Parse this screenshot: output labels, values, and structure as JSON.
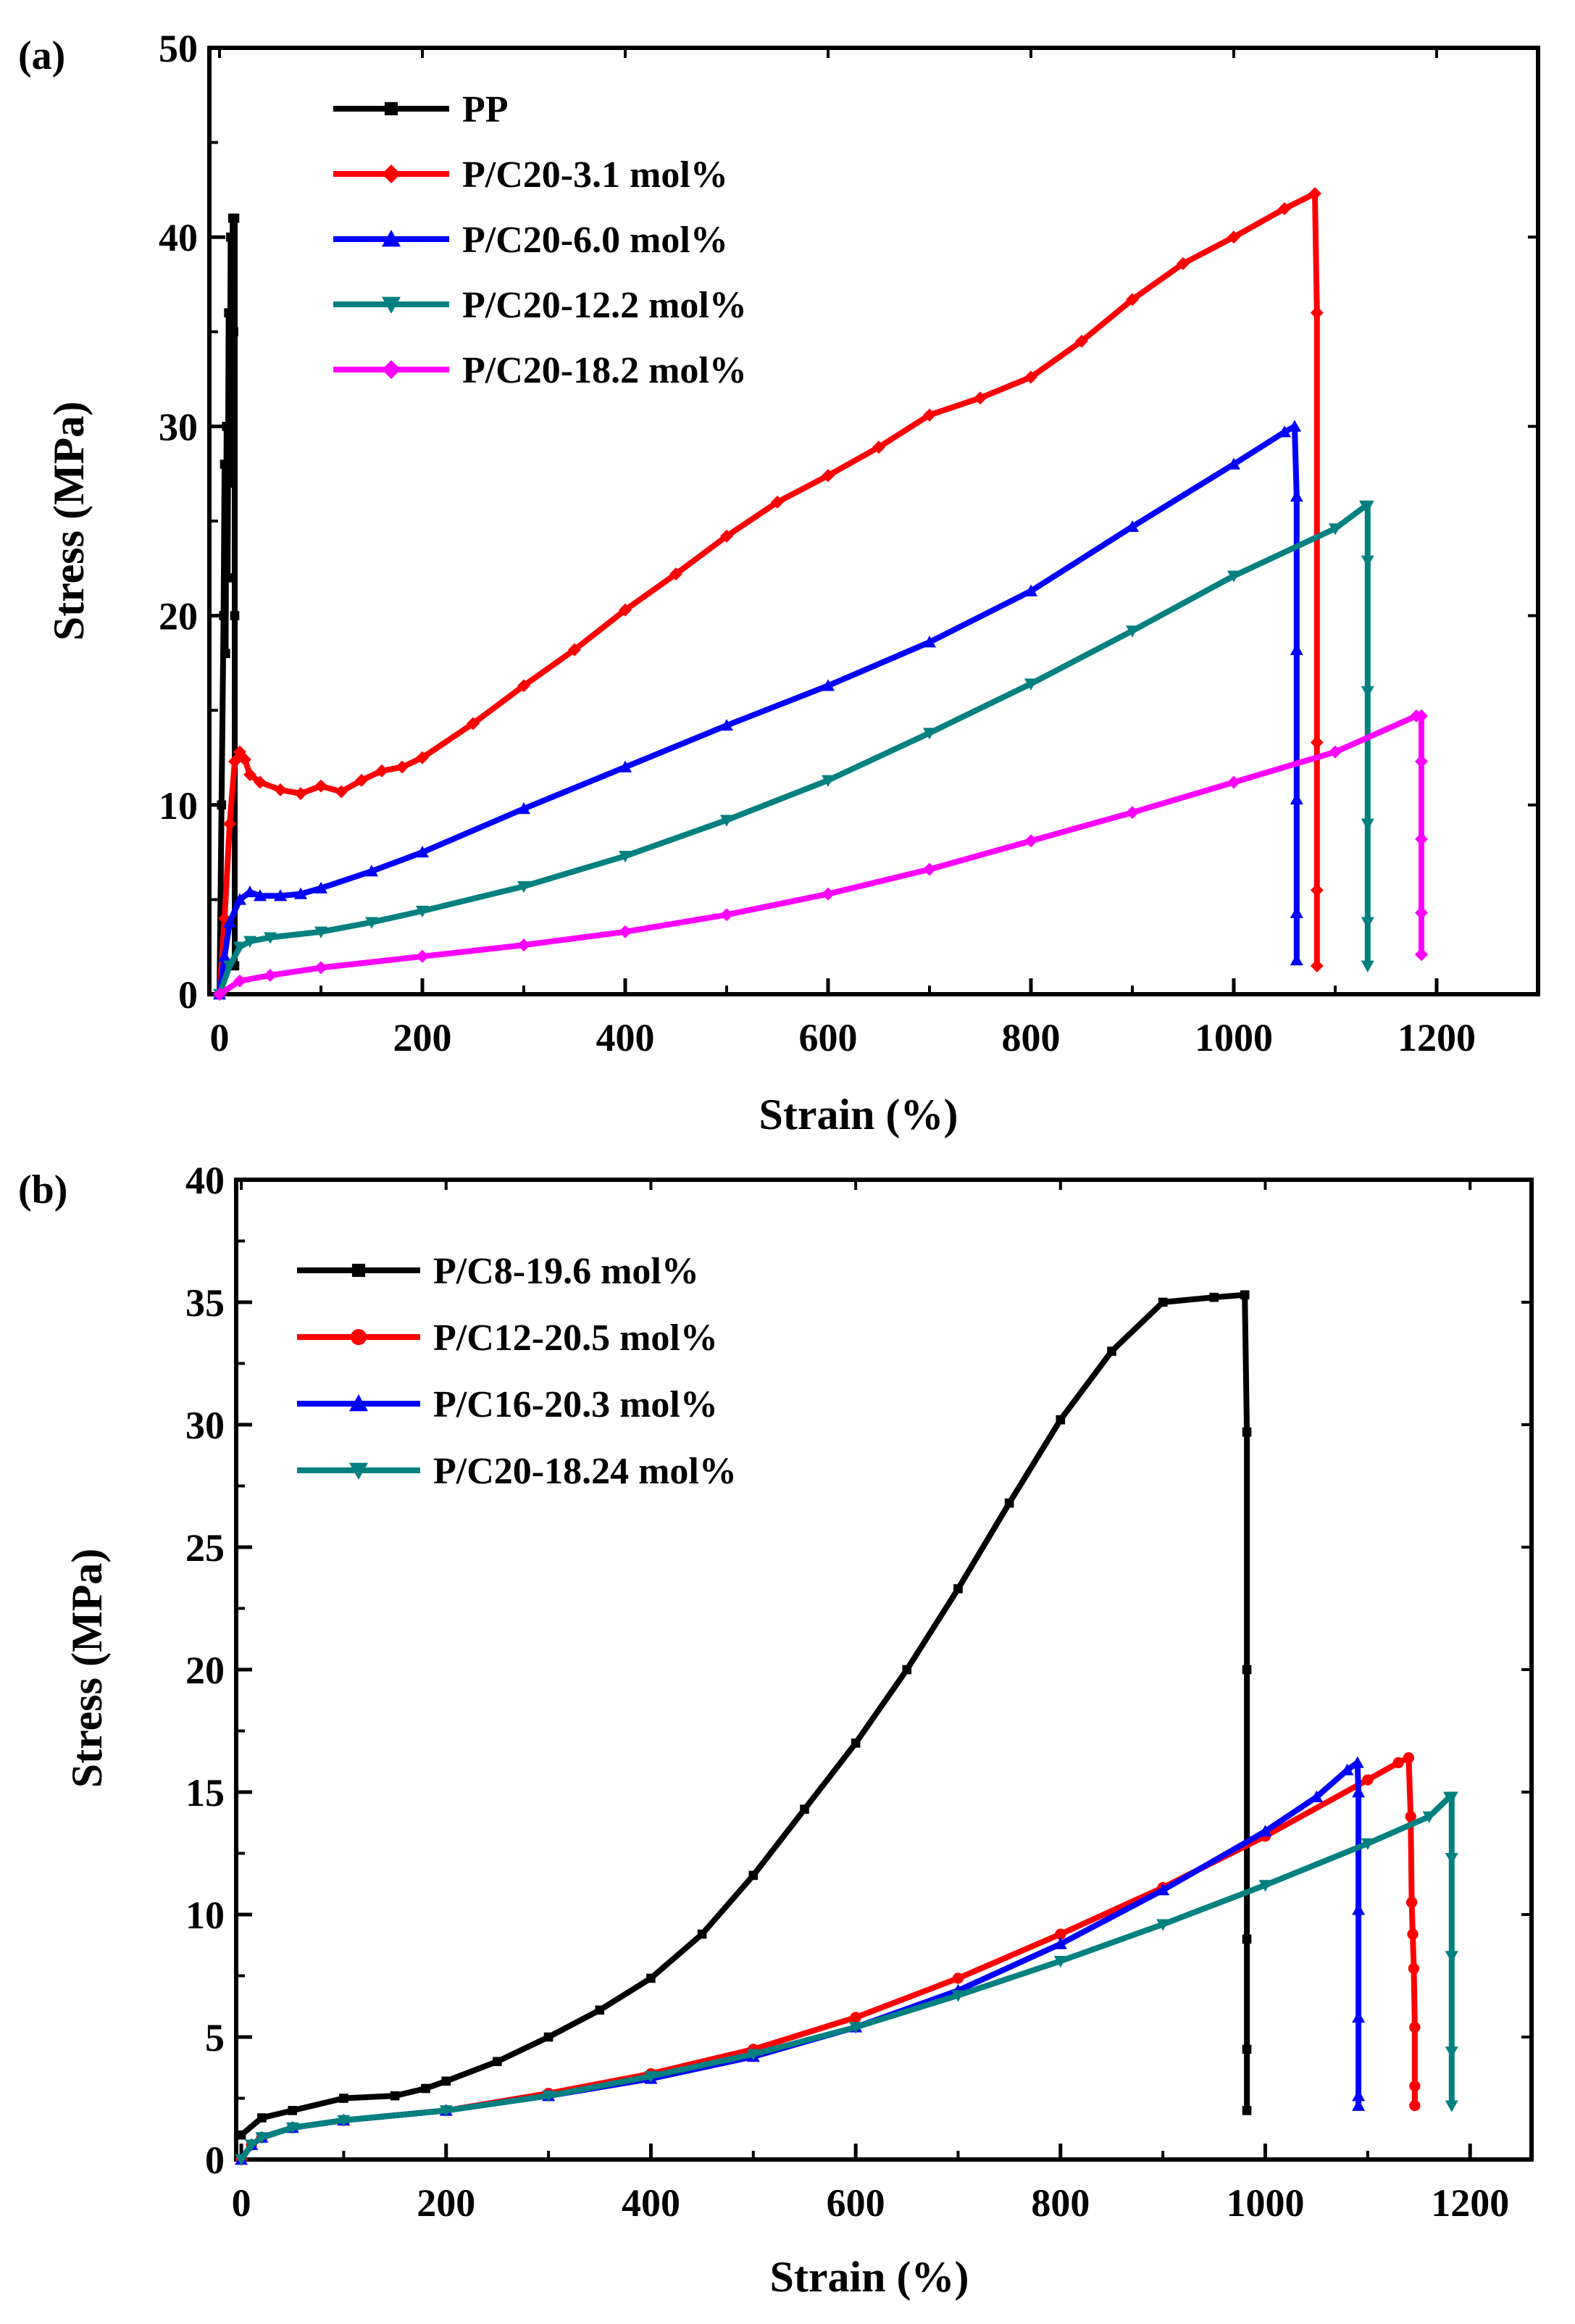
{
  "chart_data": [
    {
      "type": "line",
      "panel_label": "(a)",
      "xlabel": "Strain (%)",
      "ylabel": "Stress (MPa)",
      "xlim": [
        -10,
        1300
      ],
      "ylim": [
        0,
        50
      ],
      "xticks": [
        0,
        200,
        400,
        600,
        800,
        1000,
        1200
      ],
      "yticks": [
        0,
        10,
        20,
        30,
        40,
        50
      ],
      "legend_position": "top-left",
      "series": [
        {
          "name": "PP",
          "color": "#000000",
          "marker": "square",
          "x": [
            0,
            2,
            4,
            5,
            6,
            7,
            8,
            9,
            10,
            11,
            12,
            13,
            14,
            15,
            15,
            15
          ],
          "y": [
            0,
            10,
            20,
            28,
            18,
            30,
            22,
            36,
            27,
            40,
            30,
            41,
            35,
            41,
            20,
            1.5
          ]
        },
        {
          "name": "P/C20-3.1 mol%",
          "color": "#ff0000",
          "marker": "diamond",
          "x": [
            0,
            5,
            10,
            15,
            20,
            25,
            30,
            40,
            60,
            80,
            100,
            120,
            140,
            160,
            180,
            200,
            250,
            300,
            350,
            400,
            450,
            500,
            550,
            600,
            650,
            700,
            750,
            800,
            850,
            900,
            950,
            1000,
            1050,
            1080,
            1082,
            1082,
            1082,
            1082
          ],
          "y": [
            0,
            4,
            9,
            12.3,
            12.8,
            12.4,
            11.6,
            11.2,
            10.8,
            10.6,
            11.0,
            10.7,
            11.3,
            11.8,
            12.0,
            12.5,
            14.3,
            16.3,
            18.2,
            20.3,
            22.2,
            24.2,
            26.0,
            27.4,
            28.9,
            30.6,
            31.5,
            32.6,
            34.5,
            36.7,
            38.6,
            40.0,
            41.5,
            42.3,
            36,
            13.3,
            5.5,
            1.5
          ]
        },
        {
          "name": "P/C20-6.0 mol%",
          "color": "#0000ff",
          "marker": "triangle-up",
          "x": [
            0,
            5,
            10,
            20,
            30,
            40,
            60,
            80,
            100,
            150,
            200,
            300,
            400,
            500,
            600,
            700,
            800,
            900,
            1000,
            1050,
            1060,
            1062,
            1062,
            1062,
            1062,
            1062
          ],
          "y": [
            0,
            2.0,
            3.8,
            5.0,
            5.4,
            5.2,
            5.2,
            5.3,
            5.6,
            6.5,
            7.5,
            9.8,
            12.0,
            14.2,
            16.3,
            18.6,
            21.3,
            24.7,
            28.0,
            29.7,
            30.0,
            26.3,
            18.2,
            10.3,
            4.3,
            1.8
          ]
        },
        {
          "name": "P/C20-12.2 mol%",
          "color": "#008080",
          "marker": "triangle-down",
          "x": [
            0,
            10,
            20,
            30,
            50,
            100,
            150,
            200,
            300,
            400,
            500,
            600,
            700,
            800,
            900,
            1000,
            1100,
            1130,
            1132,
            1132,
            1132,
            1132,
            1132,
            1132
          ],
          "y": [
            0,
            1.5,
            2.5,
            2.8,
            3.0,
            3.3,
            3.8,
            4.4,
            5.7,
            7.3,
            9.2,
            11.3,
            13.8,
            16.4,
            19.2,
            22.1,
            24.6,
            25.8,
            25.8,
            22.9,
            16.0,
            9.0,
            3.8,
            1.5
          ]
        },
        {
          "name": "P/C20-18.2 mol%",
          "color": "#ff00ff",
          "marker": "diamond",
          "x": [
            0,
            20,
            50,
            100,
            200,
            300,
            400,
            500,
            600,
            700,
            800,
            900,
            1000,
            1100,
            1180,
            1185,
            1185,
            1185,
            1185,
            1185,
            1185
          ],
          "y": [
            0,
            0.7,
            1.0,
            1.4,
            2.0,
            2.6,
            3.3,
            4.2,
            5.3,
            6.6,
            8.1,
            9.6,
            11.2,
            12.8,
            14.7,
            14.7,
            12.3,
            8.2,
            4.3,
            2.1,
            2.1
          ]
        }
      ]
    },
    {
      "type": "line",
      "panel_label": "(b)",
      "xlabel": "Strain (%)",
      "ylabel": "Stress (MPa)",
      "xlim": [
        -5,
        1260
      ],
      "ylim": [
        0,
        40
      ],
      "xticks": [
        0,
        200,
        400,
        600,
        800,
        1000,
        1200
      ],
      "yticks": [
        0,
        5,
        10,
        15,
        20,
        25,
        30,
        35,
        40
      ],
      "legend_position": "top-left",
      "series": [
        {
          "name": "P/C8-19.6 mol%",
          "color": "#000000",
          "marker": "square",
          "x": [
            0,
            20,
            50,
            100,
            150,
            180,
            200,
            250,
            300,
            350,
            400,
            450,
            500,
            550,
            600,
            650,
            700,
            750,
            800,
            850,
            900,
            950,
            980,
            982,
            982,
            982,
            982,
            982
          ],
          "y": [
            1.0,
            1.7,
            2.0,
            2.5,
            2.6,
            2.9,
            3.2,
            4.0,
            5.0,
            6.1,
            7.4,
            9.2,
            11.6,
            14.3,
            17.0,
            20.0,
            23.3,
            26.8,
            30.2,
            33.0,
            35.0,
            35.2,
            35.3,
            29.7,
            20.0,
            9.0,
            4.5,
            2.0
          ]
        },
        {
          "name": "P/C12-20.5 mol%",
          "color": "#ff0000",
          "marker": "circle",
          "x": [
            0,
            10,
            20,
            50,
            100,
            200,
            300,
            400,
            500,
            600,
            700,
            800,
            900,
            1000,
            1100,
            1130,
            1140,
            1142,
            1143,
            1144,
            1145,
            1146,
            1146,
            1146
          ],
          "y": [
            0,
            0.6,
            0.9,
            1.3,
            1.6,
            2.0,
            2.7,
            3.5,
            4.5,
            5.8,
            7.4,
            9.2,
            11.1,
            13.2,
            15.5,
            16.2,
            16.4,
            14.0,
            10.5,
            9.2,
            7.8,
            5.4,
            3.0,
            2.2
          ]
        },
        {
          "name": "P/C16-20.3 mol%",
          "color": "#0000ff",
          "marker": "triangle-up",
          "x": [
            0,
            10,
            20,
            50,
            100,
            200,
            300,
            400,
            500,
            600,
            700,
            800,
            900,
            1000,
            1050,
            1080,
            1090,
            1091,
            1091,
            1091,
            1091,
            1091
          ],
          "y": [
            0,
            0.6,
            0.9,
            1.3,
            1.6,
            2.0,
            2.6,
            3.3,
            4.2,
            5.4,
            6.9,
            8.8,
            11.0,
            13.4,
            14.8,
            15.9,
            16.2,
            15.0,
            10.2,
            5.8,
            2.6,
            2.2
          ]
        },
        {
          "name": "P/C20-18.24 mol%",
          "color": "#008080",
          "marker": "triangle-down",
          "x": [
            0,
            10,
            20,
            50,
            100,
            200,
            300,
            400,
            500,
            600,
            700,
            800,
            900,
            1000,
            1100,
            1160,
            1180,
            1182,
            1182,
            1182,
            1182,
            1182
          ],
          "y": [
            0,
            0.6,
            0.9,
            1.3,
            1.6,
            2.0,
            2.6,
            3.4,
            4.3,
            5.4,
            6.7,
            8.1,
            9.6,
            11.2,
            12.9,
            14.0,
            14.8,
            14.8,
            12.3,
            8.3,
            4.4,
            2.2
          ]
        }
      ]
    }
  ]
}
